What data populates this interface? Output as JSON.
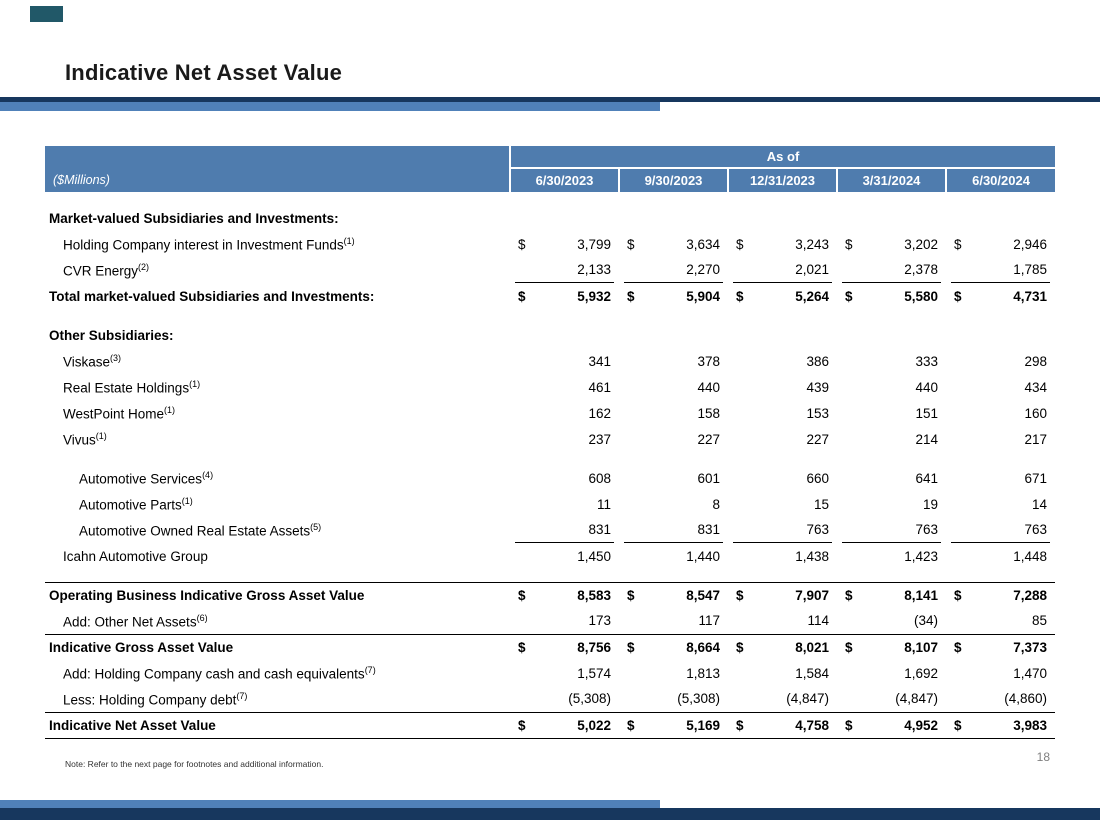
{
  "slide": {
    "title": "Indicative Net Asset Value",
    "note": "Note: Refer to the next page for footnotes and additional information.",
    "page_number": "18"
  },
  "colors": {
    "header_blue": "#4f7cae",
    "bar_navy": "#17375e",
    "bar_steel": "#5081b9",
    "corner_teal": "#215868"
  },
  "table": {
    "units_label": "($Millions)",
    "as_of_label": "As of",
    "currency_symbol": "$",
    "columns": [
      "6/30/2023",
      "9/30/2023",
      "12/31/2023",
      "3/31/2024",
      "6/30/2024"
    ],
    "rows": [
      {
        "type": "spacer"
      },
      {
        "type": "section",
        "label": "Market-valued Subsidiaries and Investments:"
      },
      {
        "type": "item",
        "indent": 1,
        "label": "Holding Company interest in Investment Funds",
        "sup": "(1)",
        "dollar": true,
        "values": [
          "3,799",
          "3,634",
          "3,243",
          "3,202",
          "2,946"
        ]
      },
      {
        "type": "item",
        "indent": 1,
        "label": "CVR Energy",
        "sup": "(2)",
        "values": [
          "2,133",
          "2,270",
          "2,021",
          "2,378",
          "1,785"
        ],
        "underline_values": true
      },
      {
        "type": "total",
        "label": "Total market-valued Subsidiaries and Investments:",
        "dollar": true,
        "values": [
          "5,932",
          "5,904",
          "5,264",
          "5,580",
          "4,731"
        ]
      },
      {
        "type": "spacer"
      },
      {
        "type": "section",
        "label": "Other Subsidiaries:"
      },
      {
        "type": "item",
        "indent": 1,
        "label": "Viskase",
        "sup": "(3)",
        "values": [
          "341",
          "378",
          "386",
          "333",
          "298"
        ]
      },
      {
        "type": "item",
        "indent": 1,
        "label": "Real Estate Holdings",
        "sup": "(1)",
        "values": [
          "461",
          "440",
          "439",
          "440",
          "434"
        ]
      },
      {
        "type": "item",
        "indent": 1,
        "label": "WestPoint Home",
        "sup": "(1)",
        "values": [
          "162",
          "158",
          "153",
          "151",
          "160"
        ]
      },
      {
        "type": "item",
        "indent": 1,
        "label": "Vivus",
        "sup": "(1)",
        "values": [
          "237",
          "227",
          "227",
          "214",
          "217"
        ]
      },
      {
        "type": "spacer"
      },
      {
        "type": "item",
        "indent": 2,
        "label": "Automotive Services",
        "sup": "(4)",
        "values": [
          "608",
          "601",
          "660",
          "641",
          "671"
        ]
      },
      {
        "type": "item",
        "indent": 2,
        "label": "Automotive Parts",
        "sup": "(1)",
        "values": [
          "11",
          "8",
          "15",
          "19",
          "14"
        ]
      },
      {
        "type": "item",
        "indent": 2,
        "label": "Automotive Owned Real Estate Assets",
        "sup": "(5)",
        "values": [
          "831",
          "831",
          "763",
          "763",
          "763"
        ],
        "underline_values": true
      },
      {
        "type": "item",
        "indent": 1,
        "label": "Icahn Automotive Group",
        "values": [
          "1,450",
          "1,440",
          "1,438",
          "1,423",
          "1,448"
        ]
      },
      {
        "type": "spacer"
      },
      {
        "type": "total",
        "label": "Operating Business Indicative Gross Asset Value",
        "dollar": true,
        "values": [
          "8,583",
          "8,547",
          "7,907",
          "8,141",
          "7,288"
        ],
        "top_border": true
      },
      {
        "type": "item",
        "indent": 1,
        "label": "Add: Other Net Assets",
        "sup": "(6)",
        "values": [
          "173",
          "117",
          "114",
          "(34)",
          "85"
        ]
      },
      {
        "type": "total",
        "label": "Indicative Gross Asset Value",
        "dollar": true,
        "values": [
          "8,756",
          "8,664",
          "8,021",
          "8,107",
          "7,373"
        ],
        "top_border": true
      },
      {
        "type": "item",
        "indent": 1,
        "label": "Add: Holding Company cash and cash equivalents",
        "sup": "(7)",
        "values": [
          "1,574",
          "1,813",
          "1,584",
          "1,692",
          "1,470"
        ]
      },
      {
        "type": "item",
        "indent": 1,
        "label": "Less: Holding Company debt",
        "sup": "(7)",
        "values": [
          "(5,308)",
          "(5,308)",
          "(4,847)",
          "(4,847)",
          "(4,860)"
        ]
      },
      {
        "type": "total",
        "label": "Indicative Net Asset Value",
        "dollar": true,
        "values": [
          "5,022",
          "5,169",
          "4,758",
          "4,952",
          "3,983"
        ],
        "top_border": true,
        "bottom_border": true
      }
    ]
  }
}
